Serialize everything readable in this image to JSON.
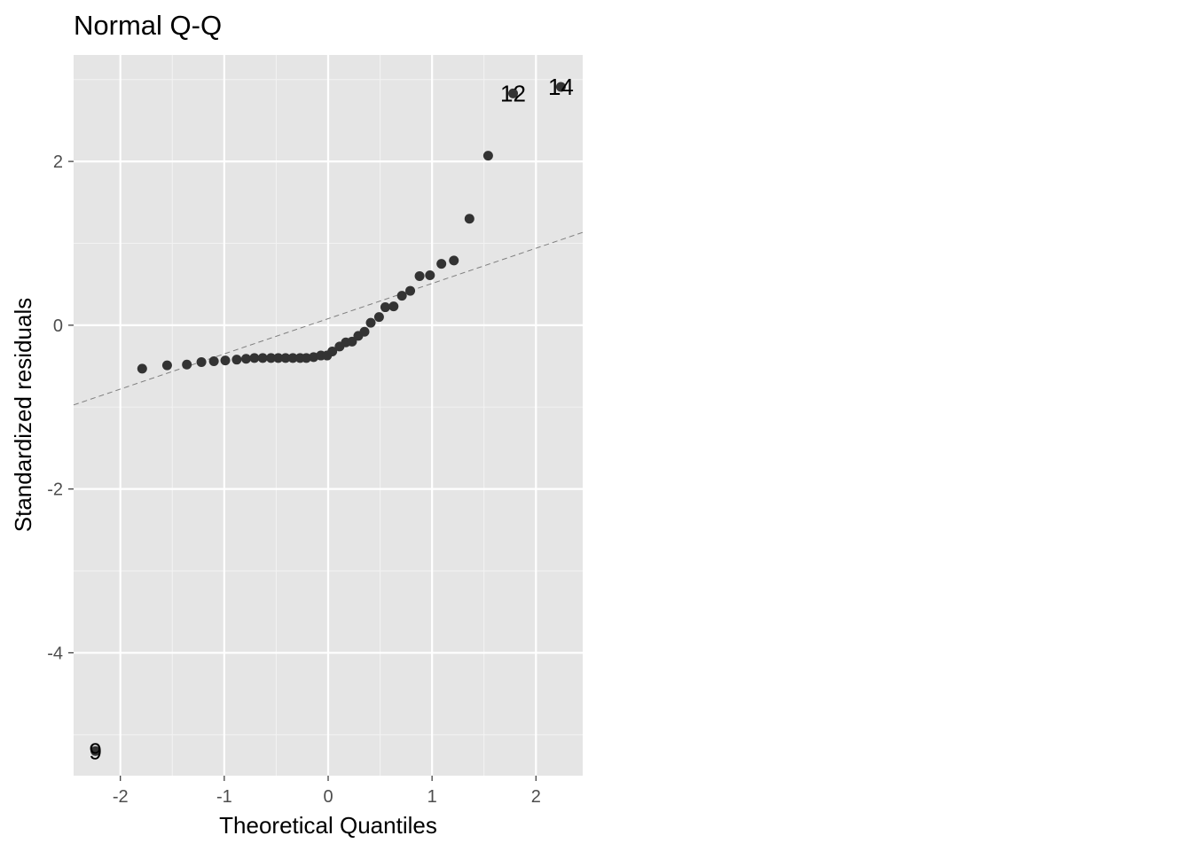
{
  "chart_data": {
    "type": "scatter",
    "title": "Normal Q-Q",
    "xlabel": "Theoretical Quantiles",
    "ylabel": "Standardized residuals",
    "xlim": [
      -2.45,
      2.45
    ],
    "ylim": [
      -5.5,
      3.3
    ],
    "xticks": [
      -2,
      -1,
      0,
      1,
      2
    ],
    "yticks": [
      -4,
      -2,
      0,
      2
    ],
    "xtick_labels": [
      "-2",
      "-1",
      "0",
      "1",
      "2"
    ],
    "ytick_labels": [
      "-4",
      "-2",
      "0",
      "2"
    ],
    "grid": true,
    "reference_line": {
      "intercept": 0.08,
      "slope": 0.43,
      "style": "dashed"
    },
    "points": [
      {
        "x": -2.24,
        "y": -5.2
      },
      {
        "x": -1.79,
        "y": -0.53
      },
      {
        "x": -1.55,
        "y": -0.49
      },
      {
        "x": -1.36,
        "y": -0.48
      },
      {
        "x": -1.22,
        "y": -0.45
      },
      {
        "x": -1.1,
        "y": -0.44
      },
      {
        "x": -0.99,
        "y": -0.43
      },
      {
        "x": -0.88,
        "y": -0.42
      },
      {
        "x": -0.79,
        "y": -0.41
      },
      {
        "x": -0.71,
        "y": -0.4
      },
      {
        "x": -0.63,
        "y": -0.4
      },
      {
        "x": -0.55,
        "y": -0.4
      },
      {
        "x": -0.48,
        "y": -0.4
      },
      {
        "x": -0.41,
        "y": -0.4
      },
      {
        "x": -0.34,
        "y": -0.4
      },
      {
        "x": -0.27,
        "y": -0.4
      },
      {
        "x": -0.21,
        "y": -0.4
      },
      {
        "x": -0.14,
        "y": -0.39
      },
      {
        "x": -0.07,
        "y": -0.37
      },
      {
        "x": -0.01,
        "y": -0.37
      },
      {
        "x": 0.04,
        "y": -0.32
      },
      {
        "x": 0.11,
        "y": -0.26
      },
      {
        "x": 0.17,
        "y": -0.21
      },
      {
        "x": 0.23,
        "y": -0.2
      },
      {
        "x": 0.29,
        "y": -0.13
      },
      {
        "x": 0.35,
        "y": -0.08
      },
      {
        "x": 0.41,
        "y": 0.03
      },
      {
        "x": 0.49,
        "y": 0.1
      },
      {
        "x": 0.55,
        "y": 0.22
      },
      {
        "x": 0.63,
        "y": 0.23
      },
      {
        "x": 0.71,
        "y": 0.36
      },
      {
        "x": 0.79,
        "y": 0.42
      },
      {
        "x": 0.88,
        "y": 0.6
      },
      {
        "x": 0.98,
        "y": 0.61
      },
      {
        "x": 1.09,
        "y": 0.75
      },
      {
        "x": 1.21,
        "y": 0.79
      },
      {
        "x": 1.36,
        "y": 1.3
      },
      {
        "x": 1.54,
        "y": 2.07
      },
      {
        "x": 1.78,
        "y": 2.83
      },
      {
        "x": 2.24,
        "y": 2.91
      }
    ],
    "labels": [
      {
        "text": "9",
        "x": -2.24,
        "y": -5.2
      },
      {
        "text": "12",
        "x": 1.78,
        "y": 2.83
      },
      {
        "text": "14",
        "x": 2.24,
        "y": 2.91
      }
    ]
  }
}
